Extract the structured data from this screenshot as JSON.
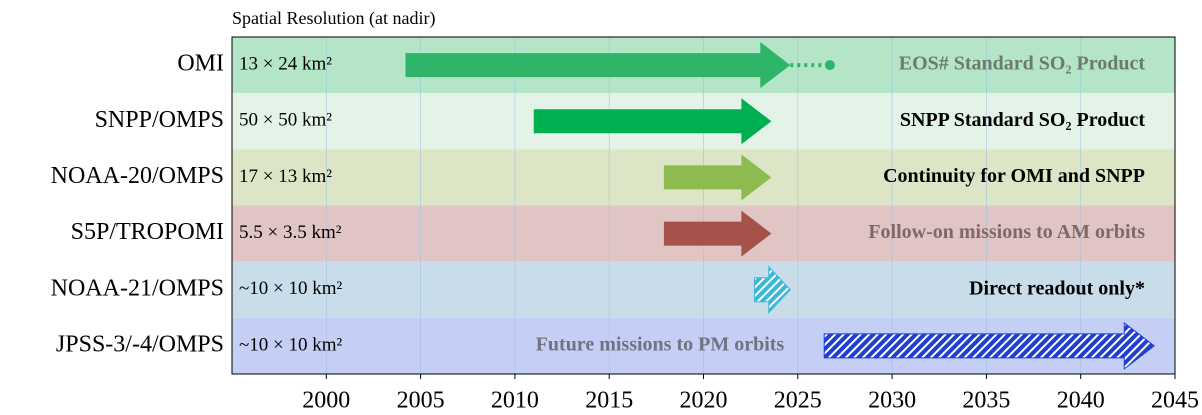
{
  "chart_data": {
    "type": "timeline",
    "x_label": "Spatial Resolution (at nadir)",
    "xlim": [
      1995,
      2045
    ],
    "xticks": [
      2000,
      2005,
      2010,
      2015,
      2020,
      2025,
      2030,
      2035,
      2040,
      2045
    ],
    "grid": true,
    "rows": [
      {
        "name": "OMI",
        "resolution": "13 × 24 km²",
        "start": 2004.2,
        "end": 2024.6,
        "extension_end": 2026.7,
        "note": "EOS# Standard SO₂ Product",
        "band_color": "#b4e5c6",
        "color": "#2fb56a",
        "note_color": "#6b7b70",
        "pattern": "solid"
      },
      {
        "name": "SNPP/OMPS",
        "resolution": "50 × 50 km²",
        "start": 2011.0,
        "end": 2023.6,
        "note": "SNPP Standard SO₂ Product",
        "band_color": "#e3f3e8",
        "color": "#00b050",
        "note_color": "#000000",
        "pattern": "solid"
      },
      {
        "name": "NOAA-20/OMPS",
        "resolution": "17 × 13 km²",
        "start": 2017.9,
        "end": 2023.6,
        "note": "Continuity for OMI and SNPP",
        "band_color": "#dce5c6",
        "color": "#8dbb4f",
        "note_color": "#000000",
        "pattern": "solid"
      },
      {
        "name": "S5P/TROPOMI",
        "resolution": "5.5 × 3.5 km²",
        "start": 2017.9,
        "end": 2023.6,
        "note": "Follow-on missions to AM orbits",
        "band_color": "#e1c5c5",
        "color": "#a5524b",
        "note_color": "#806868",
        "pattern": "solid"
      },
      {
        "name": "NOAA-21/OMPS",
        "resolution": "~10 × 10 km²",
        "start": 2022.7,
        "end": 2024.6,
        "note": "Direct readout only*",
        "band_color": "#c9dcea",
        "color": "#3bb8d8",
        "note_color": "#000000",
        "pattern": "hatched"
      },
      {
        "name": "JPSS-3/-4/OMPS",
        "resolution": "~10 × 10 km²",
        "start": 2026.4,
        "end": 2043.9,
        "note": "Future missions to PM orbits",
        "band_color": "#c5cff5",
        "color": "#1f3fd0",
        "note_color": "#707480",
        "pattern": "hatched"
      }
    ]
  }
}
